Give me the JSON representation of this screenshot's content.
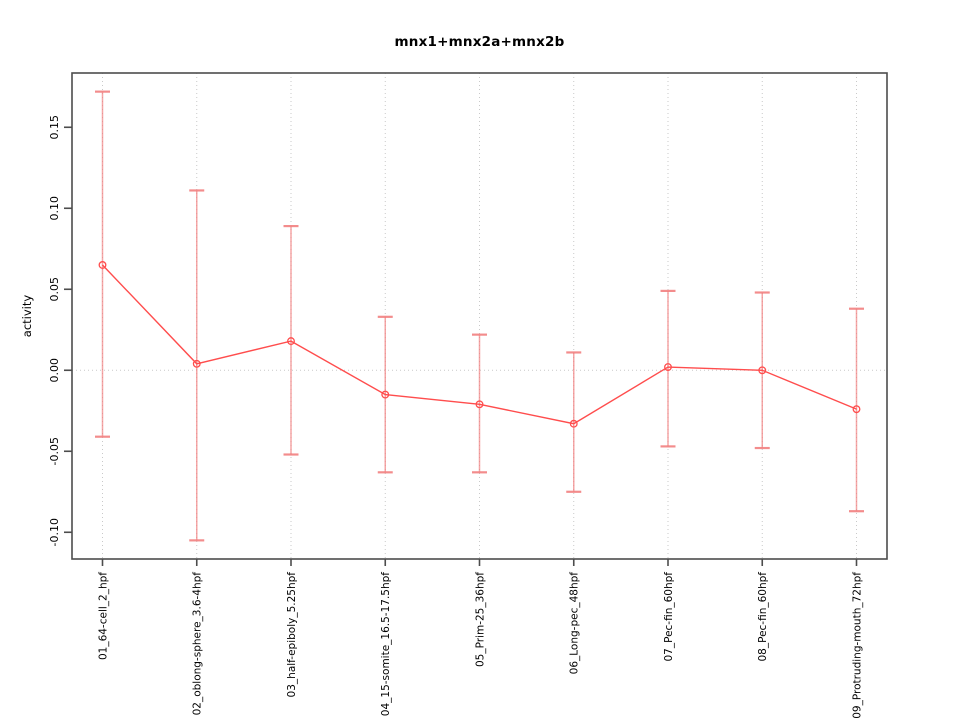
{
  "chart_data": {
    "type": "line",
    "title": "mnx1+mnx2a+mnx2b",
    "ylabel": "activity",
    "xlabel": "",
    "categories": [
      "01_64-cell_2_hpf",
      "02_oblong-sphere_3.6-4hpf",
      "03_half-epiboly_5.25hpf",
      "04_15-somite_16.5-17.5hpf",
      "05_Prim-25_36hpf",
      "06_Long-pec_48hpf",
      "07_Pec-fin_60hpf",
      "08_Pec-fin_60hpf",
      "09_Protruding-mouth_72hpf"
    ],
    "series": [
      {
        "name": "activity",
        "values": [
          0.065,
          0.004,
          0.018,
          -0.015,
          -0.021,
          -0.033,
          0.002,
          0.0,
          -0.024
        ],
        "upper": [
          0.172,
          0.111,
          0.089,
          0.033,
          0.022,
          0.011,
          0.049,
          0.048,
          0.038
        ],
        "lower": [
          -0.041,
          -0.105,
          -0.052,
          -0.063,
          -0.063,
          -0.075,
          -0.047,
          -0.048,
          -0.087
        ]
      }
    ],
    "yticks": [
      -0.1,
      -0.05,
      0.0,
      0.05,
      0.1,
      0.15
    ],
    "ylim": [
      -0.1165,
      0.1835
    ],
    "grid": {
      "vertical_dotted": true,
      "horizontal_zero_dotted": true
    },
    "legend": "none",
    "marker": "open-circle",
    "colors": {
      "line": "#ff4d4d",
      "error_bar": "#f28080",
      "grid": "#c9c9c9",
      "axis": "#4d4d4d",
      "text": "#000000",
      "background": "#ffffff"
    }
  }
}
